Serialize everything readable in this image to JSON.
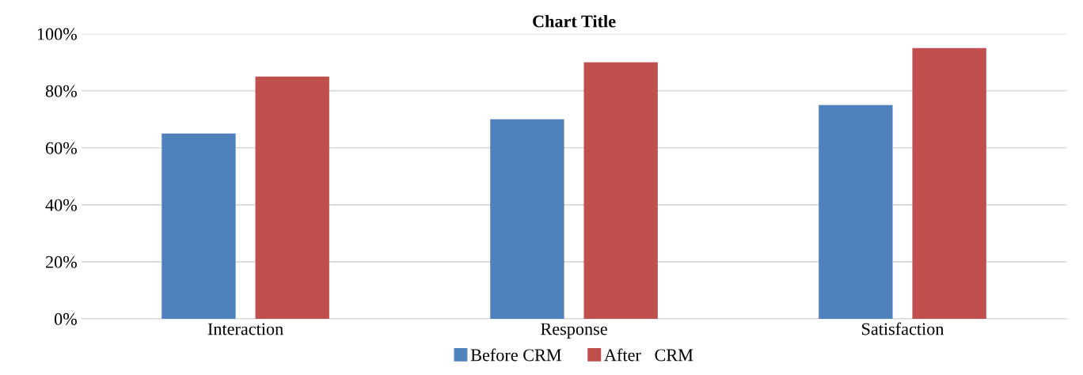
{
  "chart_data": {
    "type": "bar",
    "title": "Chart Title",
    "categories": [
      "Interaction",
      "Response",
      "Satisfaction"
    ],
    "series": [
      {
        "name": "Before CRM",
        "color": "#4f81bd",
        "values": [
          65,
          70,
          75
        ]
      },
      {
        "name": "After   CRM",
        "color": "#c0504d",
        "values": [
          85,
          90,
          95
        ]
      }
    ],
    "ylim": [
      0,
      100
    ],
    "yticks": [
      {
        "value": 0,
        "label": "0%"
      },
      {
        "value": 20,
        "label": "20%"
      },
      {
        "value": 40,
        "label": "40%"
      },
      {
        "value": 60,
        "label": "60%"
      },
      {
        "value": 80,
        "label": "80%"
      },
      {
        "value": 100,
        "label": "100%"
      }
    ],
    "grid": "y",
    "legend": "bottom"
  }
}
